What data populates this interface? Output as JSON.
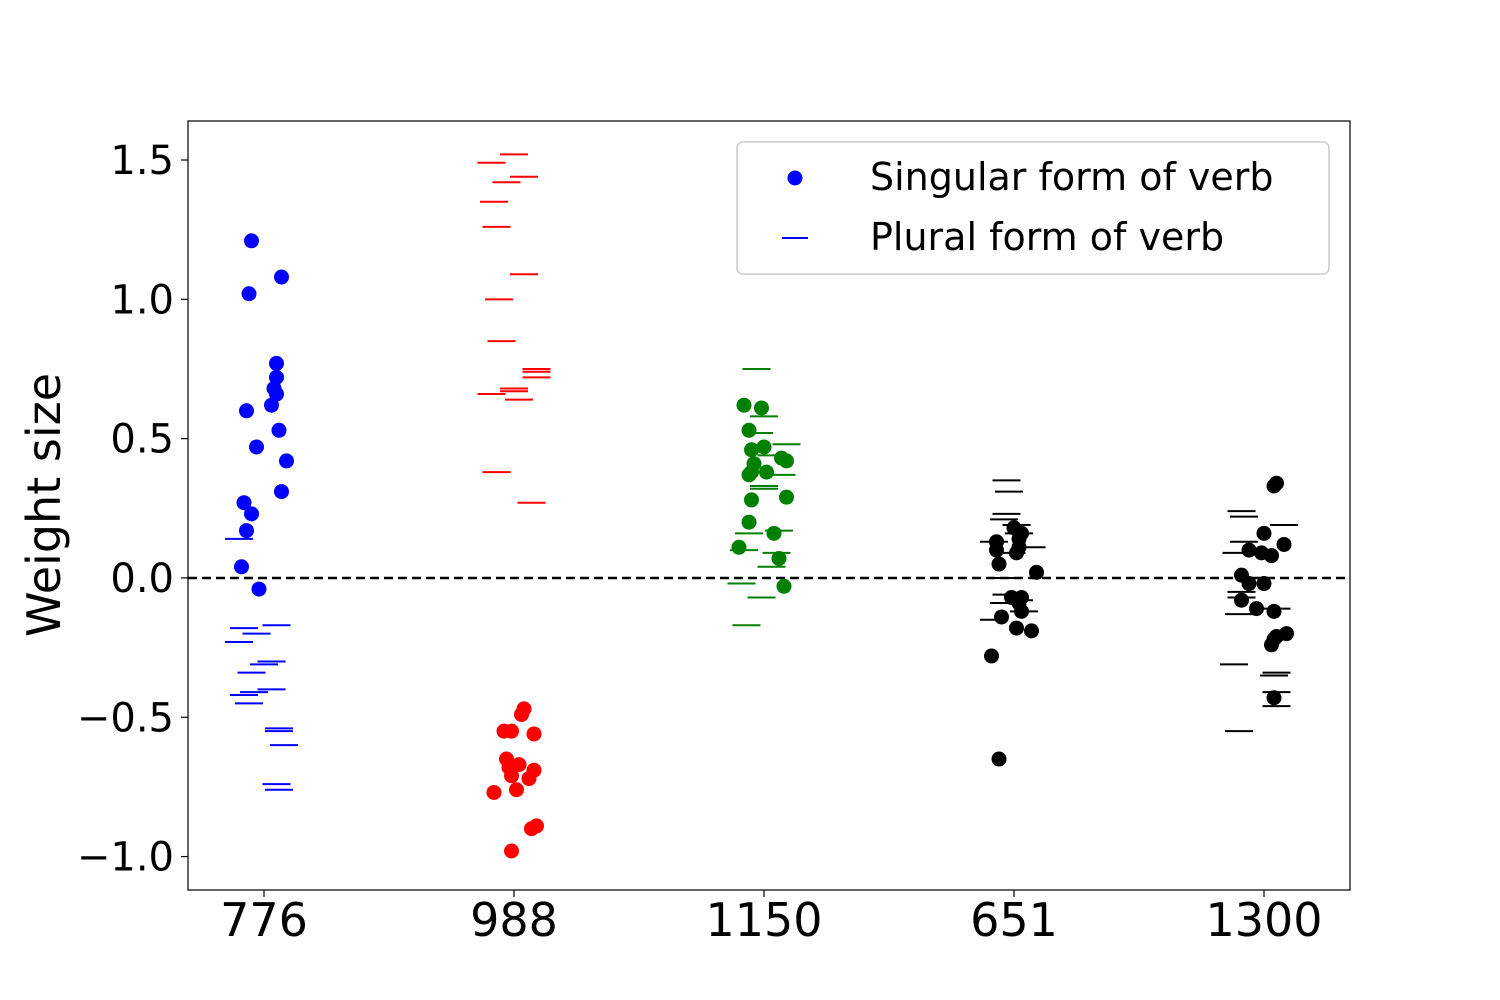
{
  "chart_data": {
    "type": "scatter",
    "title": "",
    "xlabel": "",
    "ylabel": "Weight size",
    "ylim": [
      -1.12,
      1.64
    ],
    "yticks": [
      1.5,
      1.0,
      0.5,
      0.0,
      -0.5,
      -1.0
    ],
    "ytick_labels": [
      "1.5",
      "1.0",
      "0.5",
      "0.0",
      "−0.5",
      "−1.0"
    ],
    "categories": [
      "776",
      "988",
      "1150",
      "651",
      "1300"
    ],
    "reference_line": {
      "y": 0.0,
      "style": "dashed",
      "color": "#000000"
    },
    "grid": false,
    "legend": {
      "placement": "top-right",
      "entries": [
        {
          "label": "Singular form of verb",
          "marker": "circle",
          "color": "#0000ff"
        },
        {
          "label": "Plural form of verb",
          "marker": "hline",
          "color": "#0000ff"
        }
      ]
    },
    "groups": [
      {
        "category": "776",
        "color": "#0000ff",
        "singular": [
          {
            "x": -0.05,
            "y": 1.21
          },
          {
            "x": 0.07,
            "y": 1.08
          },
          {
            "x": -0.06,
            "y": 1.02
          },
          {
            "x": 0.05,
            "y": 0.77
          },
          {
            "x": 0.05,
            "y": 0.72
          },
          {
            "x": 0.04,
            "y": 0.68
          },
          {
            "x": 0.05,
            "y": 0.66
          },
          {
            "x": 0.03,
            "y": 0.62
          },
          {
            "x": -0.07,
            "y": 0.6
          },
          {
            "x": 0.06,
            "y": 0.53
          },
          {
            "x": -0.03,
            "y": 0.47
          },
          {
            "x": 0.09,
            "y": 0.42
          },
          {
            "x": 0.07,
            "y": 0.31
          },
          {
            "x": -0.08,
            "y": 0.27
          },
          {
            "x": -0.05,
            "y": 0.23
          },
          {
            "x": -0.07,
            "y": 0.17
          },
          {
            "x": -0.09,
            "y": 0.04
          },
          {
            "x": -0.02,
            "y": -0.04
          }
        ],
        "plural": [
          {
            "x": -0.1,
            "y": 0.14
          },
          {
            "x": 0.05,
            "y": -0.17
          },
          {
            "x": -0.08,
            "y": -0.18
          },
          {
            "x": -0.03,
            "y": -0.2
          },
          {
            "x": -0.1,
            "y": -0.23
          },
          {
            "x": 0.03,
            "y": -0.3
          },
          {
            "x": -0.0,
            "y": -0.31
          },
          {
            "x": -0.05,
            "y": -0.34
          },
          {
            "x": 0.03,
            "y": -0.4
          },
          {
            "x": -0.04,
            "y": -0.41
          },
          {
            "x": -0.08,
            "y": -0.42
          },
          {
            "x": -0.06,
            "y": -0.45
          },
          {
            "x": 0.06,
            "y": -0.54
          },
          {
            "x": 0.06,
            "y": -0.55
          },
          {
            "x": 0.08,
            "y": -0.6
          },
          {
            "x": 0.05,
            "y": -0.74
          },
          {
            "x": 0.06,
            "y": -0.76
          }
        ]
      },
      {
        "category": "988",
        "color": "#ff0000",
        "singular": [
          {
            "x": 0.04,
            "y": -0.47
          },
          {
            "x": 0.03,
            "y": -0.49
          },
          {
            "x": -0.04,
            "y": -0.55
          },
          {
            "x": -0.01,
            "y": -0.55
          },
          {
            "x": 0.08,
            "y": -0.56
          },
          {
            "x": -0.03,
            "y": -0.65
          },
          {
            "x": 0.02,
            "y": -0.67
          },
          {
            "x": -0.02,
            "y": -0.68
          },
          {
            "x": 0.08,
            "y": -0.69
          },
          {
            "x": -0.01,
            "y": -0.71
          },
          {
            "x": 0.06,
            "y": -0.72
          },
          {
            "x": 0.01,
            "y": -0.76
          },
          {
            "x": -0.08,
            "y": -0.77
          },
          {
            "x": 0.09,
            "y": -0.89
          },
          {
            "x": 0.07,
            "y": -0.9
          },
          {
            "x": -0.01,
            "y": -0.98
          }
        ],
        "plural": [
          {
            "x": 0.0,
            "y": 1.52
          },
          {
            "x": -0.09,
            "y": 1.49
          },
          {
            "x": 0.04,
            "y": 1.44
          },
          {
            "x": -0.03,
            "y": 1.42
          },
          {
            "x": -0.08,
            "y": 1.35
          },
          {
            "x": -0.07,
            "y": 1.26
          },
          {
            "x": 0.04,
            "y": 1.09
          },
          {
            "x": -0.06,
            "y": 1.0
          },
          {
            "x": -0.05,
            "y": 0.85
          },
          {
            "x": 0.09,
            "y": 0.75
          },
          {
            "x": 0.09,
            "y": 0.74
          },
          {
            "x": 0.09,
            "y": 0.72
          },
          {
            "x": 0.0,
            "y": 0.68
          },
          {
            "x": -0.0,
            "y": 0.67
          },
          {
            "x": -0.09,
            "y": 0.66
          },
          {
            "x": 0.02,
            "y": 0.64
          },
          {
            "x": -0.07,
            "y": 0.38
          },
          {
            "x": 0.07,
            "y": 0.27
          }
        ]
      },
      {
        "category": "1150",
        "color": "#008000",
        "singular": [
          {
            "x": -0.08,
            "y": 0.62
          },
          {
            "x": -0.01,
            "y": 0.61
          },
          {
            "x": -0.06,
            "y": 0.53
          },
          {
            "x": 0.0,
            "y": 0.47
          },
          {
            "x": -0.05,
            "y": 0.46
          },
          {
            "x": 0.07,
            "y": 0.43
          },
          {
            "x": 0.09,
            "y": 0.42
          },
          {
            "x": -0.04,
            "y": 0.41
          },
          {
            "x": -0.05,
            "y": 0.38
          },
          {
            "x": 0.01,
            "y": 0.38
          },
          {
            "x": -0.06,
            "y": 0.37
          },
          {
            "x": 0.09,
            "y": 0.29
          },
          {
            "x": -0.05,
            "y": 0.28
          },
          {
            "x": -0.06,
            "y": 0.2
          },
          {
            "x": 0.04,
            "y": 0.16
          },
          {
            "x": -0.1,
            "y": 0.11
          },
          {
            "x": 0.06,
            "y": 0.07
          },
          {
            "x": 0.08,
            "y": -0.03
          }
        ],
        "plural": [
          {
            "x": -0.03,
            "y": 0.75
          },
          {
            "x": 0.0,
            "y": 0.58
          },
          {
            "x": -0.02,
            "y": 0.52
          },
          {
            "x": 0.09,
            "y": 0.48
          },
          {
            "x": 0.03,
            "y": 0.44
          },
          {
            "x": 0.07,
            "y": 0.37
          },
          {
            "x": 0.0,
            "y": 0.33
          },
          {
            "x": 0.0,
            "y": 0.32
          },
          {
            "x": 0.06,
            "y": 0.17
          },
          {
            "x": -0.06,
            "y": 0.16
          },
          {
            "x": -0.08,
            "y": 0.1
          },
          {
            "x": 0.05,
            "y": 0.09
          },
          {
            "x": 0.03,
            "y": 0.04
          },
          {
            "x": -0.09,
            "y": -0.02
          },
          {
            "x": -0.01,
            "y": -0.07
          },
          {
            "x": -0.07,
            "y": -0.17
          }
        ]
      },
      {
        "category": "651",
        "color": "#000000",
        "singular": [
          {
            "x": 0.0,
            "y": 0.18
          },
          {
            "x": 0.03,
            "y": 0.16
          },
          {
            "x": 0.02,
            "y": 0.14
          },
          {
            "x": -0.07,
            "y": 0.13
          },
          {
            "x": 0.02,
            "y": 0.11
          },
          {
            "x": -0.07,
            "y": 0.1
          },
          {
            "x": 0.01,
            "y": 0.09
          },
          {
            "x": -0.06,
            "y": 0.05
          },
          {
            "x": 0.09,
            "y": 0.02
          },
          {
            "x": -0.01,
            "y": -0.07
          },
          {
            "x": 0.03,
            "y": -0.07
          },
          {
            "x": 0.02,
            "y": -0.09
          },
          {
            "x": 0.03,
            "y": -0.12
          },
          {
            "x": -0.05,
            "y": -0.14
          },
          {
            "x": 0.01,
            "y": -0.18
          },
          {
            "x": 0.07,
            "y": -0.19
          },
          {
            "x": -0.09,
            "y": -0.28
          },
          {
            "x": -0.06,
            "y": -0.65
          }
        ],
        "plural": [
          {
            "x": -0.03,
            "y": 0.35
          },
          {
            "x": -0.02,
            "y": 0.31
          },
          {
            "x": -0.03,
            "y": 0.23
          },
          {
            "x": -0.04,
            "y": 0.21
          },
          {
            "x": 0.01,
            "y": 0.19
          },
          {
            "x": 0.02,
            "y": 0.16
          },
          {
            "x": -0.08,
            "y": 0.13
          },
          {
            "x": 0.07,
            "y": 0.11
          },
          {
            "x": -0.01,
            "y": 0.09
          },
          {
            "x": -0.04,
            "y": 0.0
          },
          {
            "x": -0.03,
            "y": -0.06
          },
          {
            "x": 0.02,
            "y": -0.08
          },
          {
            "x": -0.04,
            "y": -0.09
          },
          {
            "x": 0.04,
            "y": -0.12
          },
          {
            "x": -0.08,
            "y": -0.15
          }
        ]
      },
      {
        "category": "1300",
        "color": "#000000",
        "singular": [
          {
            "x": 0.05,
            "y": 0.34
          },
          {
            "x": 0.04,
            "y": 0.33
          },
          {
            "x": 0.0,
            "y": 0.16
          },
          {
            "x": 0.08,
            "y": 0.12
          },
          {
            "x": -0.06,
            "y": 0.1
          },
          {
            "x": -0.01,
            "y": 0.09
          },
          {
            "x": 0.03,
            "y": 0.08
          },
          {
            "x": -0.09,
            "y": 0.01
          },
          {
            "x": -0.06,
            "y": -0.02
          },
          {
            "x": 0.0,
            "y": -0.02
          },
          {
            "x": -0.09,
            "y": -0.08
          },
          {
            "x": -0.03,
            "y": -0.11
          },
          {
            "x": 0.04,
            "y": -0.12
          },
          {
            "x": 0.09,
            "y": -0.2
          },
          {
            "x": 0.05,
            "y": -0.21
          },
          {
            "x": 0.04,
            "y": -0.22
          },
          {
            "x": 0.03,
            "y": -0.24
          },
          {
            "x": 0.04,
            "y": -0.43
          }
        ],
        "plural": [
          {
            "x": -0.09,
            "y": 0.24
          },
          {
            "x": -0.08,
            "y": 0.22
          },
          {
            "x": 0.08,
            "y": 0.19
          },
          {
            "x": -0.08,
            "y": 0.13
          },
          {
            "x": -0.11,
            "y": 0.09
          },
          {
            "x": -0.03,
            "y": 0.0
          },
          {
            "x": -0.09,
            "y": -0.05
          },
          {
            "x": -0.09,
            "y": -0.07
          },
          {
            "x": 0.05,
            "y": -0.11
          },
          {
            "x": -0.1,
            "y": -0.13
          },
          {
            "x": -0.12,
            "y": -0.31
          },
          {
            "x": 0.05,
            "y": -0.34
          },
          {
            "x": 0.04,
            "y": -0.35
          },
          {
            "x": 0.05,
            "y": -0.41
          },
          {
            "x": 0.05,
            "y": -0.46
          },
          {
            "x": -0.1,
            "y": -0.55
          }
        ]
      }
    ]
  }
}
